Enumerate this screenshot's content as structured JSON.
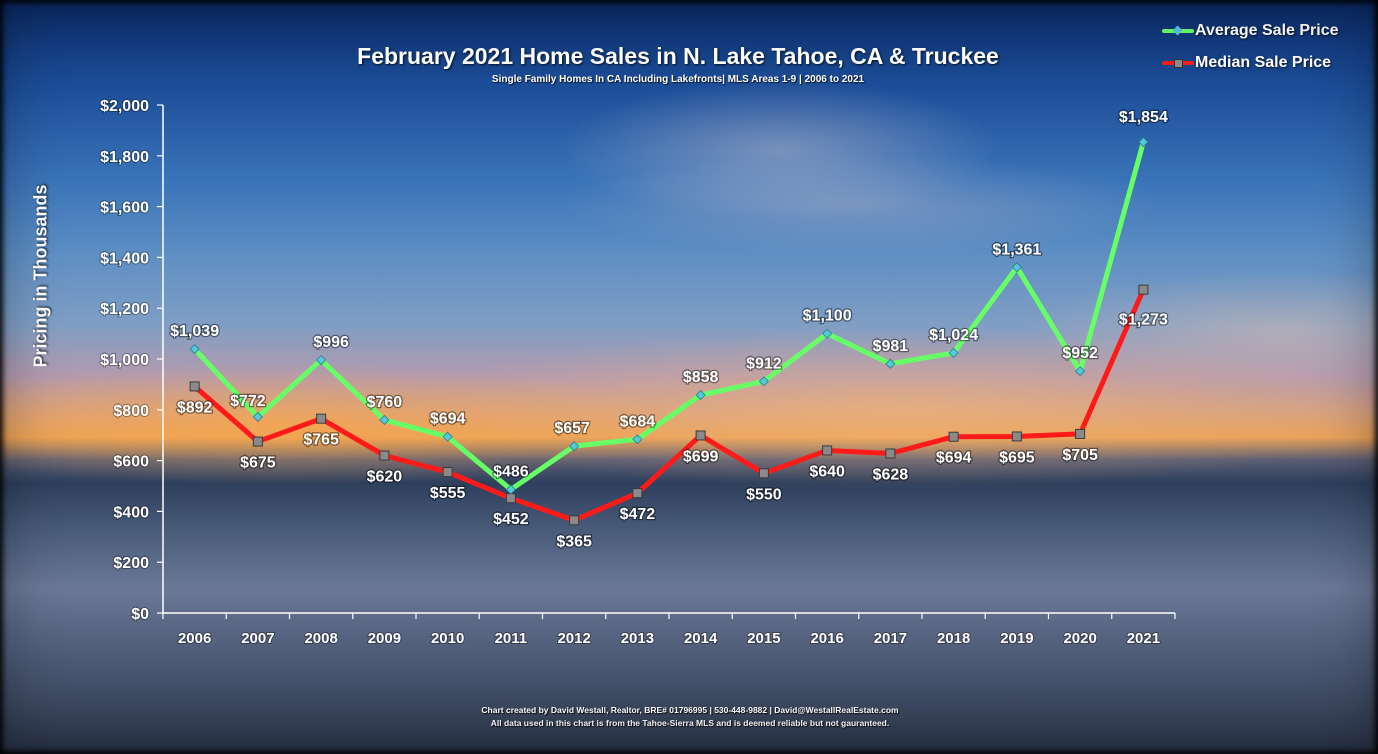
{
  "header": {
    "title": "February 2021 Home Sales in N. Lake Tahoe, CA & Truckee",
    "subtitle": "Single Family Homes In  CA Including  Lakefronts|  MLS Areas 1-9  | 2006  to  2021"
  },
  "footer": {
    "line1": "Chart created by David Westall, Realtor, BRE# 01796995 | 530-448-9882 | David@WestallRealEstate.com",
    "line2": "All data used in this chart is from the Tahoe-Sierra MLS and is deemed reliable but  not gauranteed."
  },
  "colors": {
    "average": "#66ff66",
    "average_marker": "#55c8dc",
    "median": "#ff1a1a",
    "median_marker": "#8a8a8a",
    "text": "#ffffff"
  },
  "chart_data": {
    "type": "line",
    "title": "February 2021 Home Sales in N. Lake Tahoe, CA & Truckee",
    "subtitle": "Single Family Homes In  CA Including  Lakefronts|  MLS Areas 1-9  | 2006  to  2021",
    "xlabel": "",
    "ylabel": "Pricing in Thousands",
    "ylim": [
      0,
      2000
    ],
    "yticks": [
      0,
      200,
      400,
      600,
      800,
      1000,
      1200,
      1400,
      1600,
      1800,
      2000
    ],
    "ytick_labels": [
      "$0",
      "$200",
      "$400",
      "$600",
      "$800",
      "$1,000",
      "$1,200",
      "$1,400",
      "$1,600",
      "$1,800",
      "$2,000"
    ],
    "categories": [
      "2006",
      "2007",
      "2008",
      "2009",
      "2010",
      "2011",
      "2012",
      "2013",
      "2014",
      "2015",
      "2016",
      "2017",
      "2018",
      "2019",
      "2020",
      "2021"
    ],
    "grid": false,
    "legend_position": "top-right",
    "series": [
      {
        "name": "Average Sale Price",
        "values": [
          1039,
          772,
          996,
          760,
          694,
          486,
          657,
          684,
          858,
          912,
          1100,
          981,
          1024,
          1361,
          952,
          1854
        ],
        "labels": [
          "$1,039",
          "$772",
          "$996",
          "$760",
          "$694",
          "$486",
          "$657",
          "$684",
          "$858",
          "$912",
          "$1,100",
          "$981",
          "$1,024",
          "$1,361",
          "$952",
          "$1,854"
        ]
      },
      {
        "name": "Median Sale Price",
        "values": [
          892,
          675,
          765,
          620,
          555,
          452,
          365,
          472,
          699,
          550,
          640,
          628,
          694,
          695,
          705,
          1273
        ],
        "labels": [
          "$892",
          "$675",
          "$765",
          "$620",
          "$555",
          "$452",
          "$365",
          "$472",
          "$699",
          "$550",
          "$640",
          "$628",
          "$694",
          "$695",
          "$705",
          "$1,273"
        ]
      }
    ]
  }
}
